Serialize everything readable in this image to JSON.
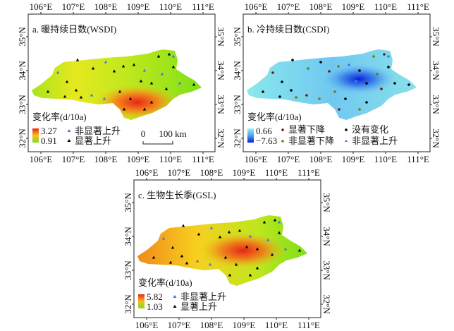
{
  "lon_ticks": [
    "106°E",
    "107°E",
    "108°E",
    "109°E",
    "110°E",
    "111°E"
  ],
  "lat_ticks": [
    "35°N",
    "34°N",
    "33°N",
    "32°N"
  ],
  "panels": [
    {
      "title": "a. 暖持续日数(WSDI)",
      "legend_title": "变化率(d/10a)",
      "max": "3.27",
      "min": "0.91",
      "markers": [
        "非显著上升",
        "显著上升"
      ],
      "scale_zero": "0",
      "scale_label": "100 km"
    },
    {
      "title": "b. 冷持续日数(CSDI)",
      "legend_title": "变化率(d/10a)",
      "max": "0.66",
      "min": "−7.63",
      "markers": [
        "显著下降",
        "没有变化",
        "非显著下降",
        "非显著上升"
      ]
    },
    {
      "title": "c. 生物生长季(GSL)",
      "legend_title": "变化率(d/10a)",
      "max": "5.82",
      "min": "1.03",
      "markers": [
        "非显著上升",
        "显著上升"
      ]
    }
  ],
  "colors": {
    "hot": "#e8231a",
    "warm": "#f7a11a",
    "mid": "#d6e81e",
    "low": "#8ee01a",
    "cold": "#1a3fe0",
    "cool": "#7fe0e8",
    "sig_down": "#7a1010",
    "nonsig_down": "#6a7a10",
    "no_change": "#000000",
    "nonsig_up": "#3a7ae8",
    "sig_up": "#000000"
  }
}
